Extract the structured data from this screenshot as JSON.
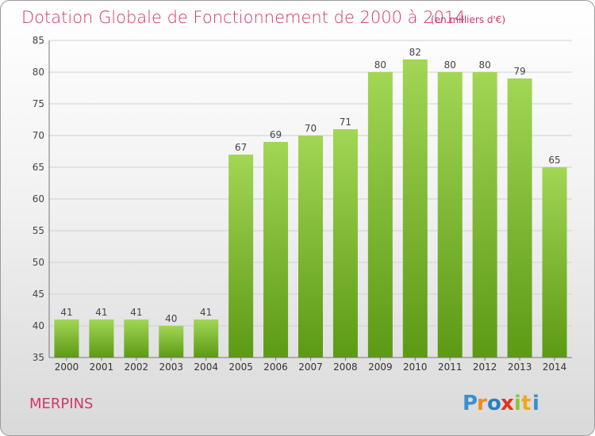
{
  "title": "Dotation Globale de Fonctionnement de 2000 à 2014",
  "unit": "(en milliers d'€)",
  "city": "MERPINS",
  "brand": "Proxiti",
  "colors": {
    "title": "#d2356a",
    "bar_top": "#a2d654",
    "bar_bottom": "#5c9a14",
    "grid": "#cfcfcf"
  },
  "chart_data": {
    "type": "bar",
    "title": "Dotation Globale de Fonctionnement de 2000 à 2014",
    "subtitle": "(en milliers d'€)",
    "categories": [
      "2000",
      "2001",
      "2002",
      "2003",
      "2004",
      "2005",
      "2006",
      "2007",
      "2008",
      "2009",
      "2010",
      "2011",
      "2012",
      "2013",
      "2014"
    ],
    "values": [
      41,
      41,
      41,
      40,
      41,
      67,
      69,
      70,
      71,
      80,
      82,
      80,
      80,
      79,
      65
    ],
    "xlabel": "",
    "ylabel": "",
    "ylim": [
      35,
      85
    ],
    "yticks": [
      35,
      40,
      45,
      50,
      55,
      60,
      65,
      70,
      75,
      80,
      85
    ],
    "grid": true,
    "legend": "none"
  }
}
